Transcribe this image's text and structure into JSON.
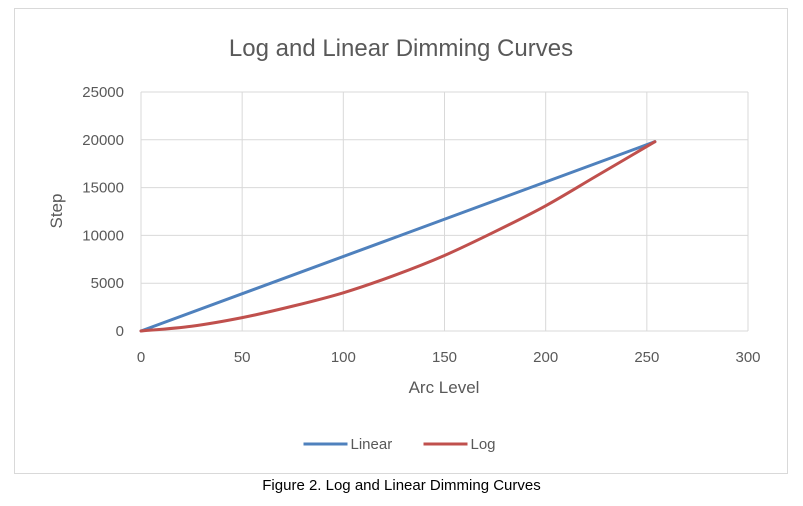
{
  "chart_data": {
    "type": "line",
    "title": "Log and Linear Dimming Curves",
    "xlabel": "Arc Level",
    "ylabel": "Step",
    "xlim": [
      0,
      300
    ],
    "ylim": [
      0,
      25000
    ],
    "xticks": [
      0,
      50,
      100,
      150,
      200,
      250,
      300
    ],
    "yticks": [
      0,
      5000,
      10000,
      15000,
      20000,
      25000
    ],
    "grid": true,
    "legend": "bottom-center",
    "series": [
      {
        "name": "Linear",
        "color": "#4f81bd",
        "x": [
          0,
          254
        ],
        "y": [
          0,
          19800
        ]
      },
      {
        "name": "Log",
        "color": "#c0504d",
        "x": [
          0,
          25,
          50,
          75,
          100,
          125,
          150,
          175,
          200,
          225,
          254
        ],
        "y": [
          0,
          500,
          1400,
          2600,
          4000,
          5800,
          7900,
          10400,
          13100,
          16200,
          19800
        ]
      }
    ]
  },
  "caption": "Figure 2. Log and Linear Dimming Curves"
}
